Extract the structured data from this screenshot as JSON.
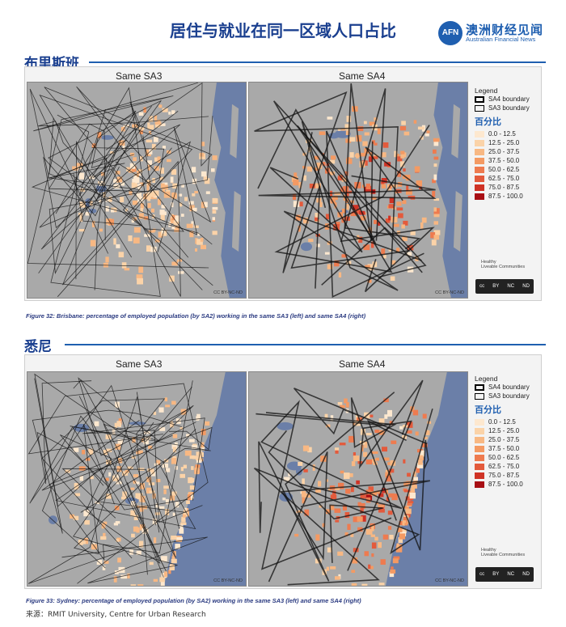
{
  "header": {
    "title": "居住与就业在同一区域人口占比",
    "brand_logo_text": "AFN",
    "brand_cn": "澳洲财经见闻",
    "brand_en": "Australian Financial News"
  },
  "sections": [
    {
      "title": "布里斯班",
      "maps": [
        {
          "label": "Same SA3"
        },
        {
          "label": "Same SA4"
        }
      ],
      "license": "CC BY-NC-ND",
      "caption": "Figure 32:  Brisbane: percentage of employed population (by SA2) working in the same SA3 (left) and same SA4 (right)"
    },
    {
      "title": "悉尼",
      "maps": [
        {
          "label": "Same SA3"
        },
        {
          "label": "Same SA4"
        }
      ],
      "license": "CC BY-NC-ND",
      "caption": "Figure 33:  Sydney: percentage of employed population (by SA2) working in the same SA3 (left) and same SA4 (right)"
    }
  ],
  "legend": {
    "title": "Legend",
    "sa4": "SA4 boundary",
    "sa3": "SA3 boundary",
    "pct_title": "百分比",
    "classes": [
      {
        "label": "0.0 - 12.5",
        "color": "#fde8cf"
      },
      {
        "label": "12.5 - 25.0",
        "color": "#fbd3a8"
      },
      {
        "label": "25.0 - 37.5",
        "color": "#f8b883"
      },
      {
        "label": "37.5 - 50.0",
        "color": "#f49a63"
      },
      {
        "label": "50.0 - 62.5",
        "color": "#ee7b4f"
      },
      {
        "label": "62.5 - 75.0",
        "color": "#e35a3c"
      },
      {
        "label": "75.0 - 87.5",
        "color": "#cf3326"
      },
      {
        "label": "87.5 - 100.0",
        "color": "#a80f14"
      }
    ],
    "healthy_line1": "Healthy",
    "healthy_line2": "Liveable Communities",
    "cc_parts": [
      "cc",
      "BY",
      "NC",
      "ND"
    ]
  },
  "source": "来源：RMIT University, Centre for Urban Research",
  "colors": {
    "ocean": "#6b7fa8",
    "land": "#a9a9a9",
    "accent": "#1f5fb0"
  }
}
